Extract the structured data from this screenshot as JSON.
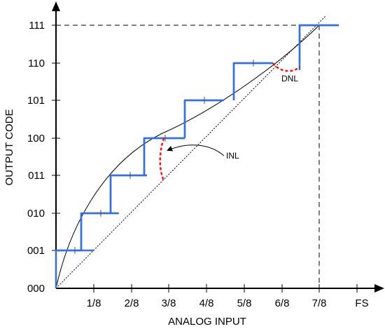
{
  "axes": {
    "x_title": "ANALOG INPUT",
    "y_title": "OUTPUT CODE",
    "x_ticks": [
      "1/8",
      "2/8",
      "3/8",
      "4/8",
      "5/8",
      "6/8",
      "7/8",
      "FS"
    ],
    "y_ticks": [
      "000",
      "001",
      "010",
      "011",
      "100",
      "101",
      "110",
      "111"
    ]
  },
  "annotations": {
    "inl": "INL",
    "dnl": "DNL"
  },
  "colors": {
    "staircase": "#3a6fd8",
    "error": "#e8161b",
    "curve": "#000000"
  }
}
